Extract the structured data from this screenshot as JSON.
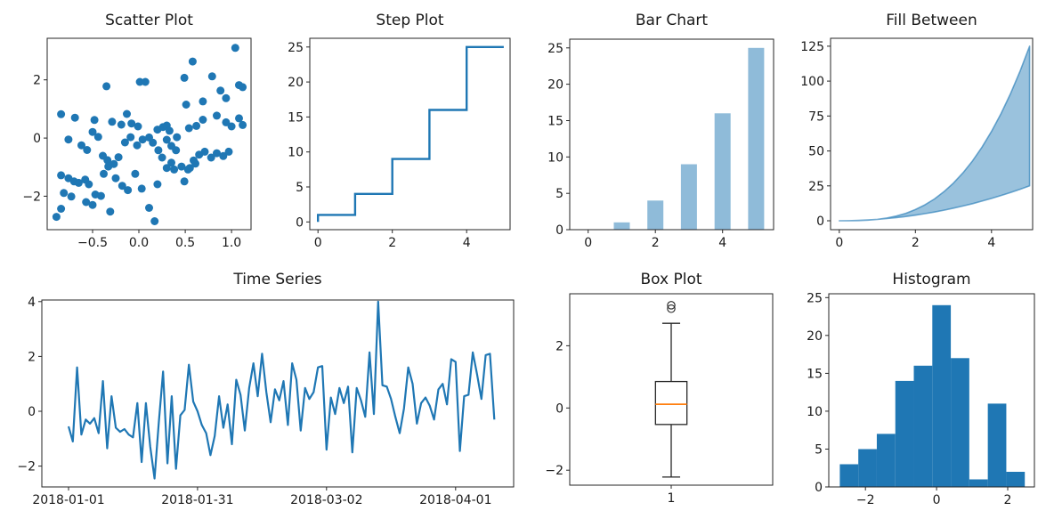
{
  "colors": {
    "primary": "#1f77b4",
    "translucent": "rgba(31,119,180,0.5)",
    "area_fill": "rgba(31,119,180,0.45)",
    "area_edge": "rgba(31,119,180,0.62)",
    "median": "#ff7f0e",
    "text": "#191919",
    "spine": "#262626"
  },
  "chart_data": [
    {
      "id": "scatter",
      "type": "scatter",
      "title": "Scatter Plot",
      "xlim": [
        -0.99,
        1.21
      ],
      "ylim": [
        -3.15,
        3.43
      ],
      "xticks": [
        {
          "v": -0.5,
          "l": "−0.5"
        },
        {
          "v": 0.0,
          "l": "0.0"
        },
        {
          "v": 0.5,
          "l": "0.5"
        },
        {
          "v": 1.0,
          "l": "1.0"
        }
      ],
      "yticks": [
        {
          "v": -2,
          "l": "−2"
        },
        {
          "v": 0,
          "l": "0"
        },
        {
          "v": 2,
          "l": "2"
        }
      ],
      "points": [
        [
          1.04,
          3.1
        ],
        [
          0.58,
          2.63
        ],
        [
          0.01,
          1.93
        ],
        [
          0.07,
          1.93
        ],
        [
          -0.35,
          1.78
        ],
        [
          0.49,
          2.07
        ],
        [
          0.79,
          2.12
        ],
        [
          1.08,
          1.82
        ],
        [
          1.12,
          1.75
        ],
        [
          0.88,
          1.63
        ],
        [
          0.94,
          1.37
        ],
        [
          0.69,
          1.26
        ],
        [
          0.51,
          1.15
        ],
        [
          -0.84,
          0.82
        ],
        [
          -0.69,
          0.7
        ],
        [
          -0.48,
          0.62
        ],
        [
          -0.29,
          0.56
        ],
        [
          -0.13,
          0.83
        ],
        [
          -0.19,
          0.46
        ],
        [
          -0.08,
          0.5
        ],
        [
          -0.01,
          0.4
        ],
        [
          0.2,
          0.29
        ],
        [
          0.26,
          0.38
        ],
        [
          0.3,
          0.43
        ],
        [
          0.33,
          0.25
        ],
        [
          0.41,
          0.03
        ],
        [
          0.54,
          0.34
        ],
        [
          0.62,
          0.42
        ],
        [
          0.69,
          0.63
        ],
        [
          0.84,
          0.77
        ],
        [
          0.94,
          0.54
        ],
        [
          1.0,
          0.4
        ],
        [
          1.08,
          0.68
        ],
        [
          1.12,
          0.45
        ],
        [
          -0.76,
          -0.05
        ],
        [
          -0.62,
          -0.25
        ],
        [
          -0.56,
          -0.41
        ],
        [
          -0.5,
          0.21
        ],
        [
          -0.44,
          0.04
        ],
        [
          -0.39,
          -0.61
        ],
        [
          -0.34,
          -0.76
        ],
        [
          -0.27,
          -0.89
        ],
        [
          -0.22,
          -0.66
        ],
        [
          -0.15,
          -0.15
        ],
        [
          -0.09,
          0.03
        ],
        [
          -0.02,
          -0.25
        ],
        [
          0.04,
          -0.05
        ],
        [
          0.11,
          0.02
        ],
        [
          0.15,
          -0.16
        ],
        [
          0.21,
          -0.42
        ],
        [
          0.25,
          -0.67
        ],
        [
          0.3,
          -0.06
        ],
        [
          0.35,
          -0.27
        ],
        [
          0.4,
          -0.42
        ],
        [
          0.46,
          -0.98
        ],
        [
          0.53,
          -1.08
        ],
        [
          0.59,
          -0.77
        ],
        [
          0.65,
          -0.57
        ],
        [
          0.71,
          -0.47
        ],
        [
          0.78,
          -0.67
        ],
        [
          0.84,
          -0.52
        ],
        [
          0.91,
          -0.62
        ],
        [
          0.97,
          -0.47
        ],
        [
          -0.84,
          -1.28
        ],
        [
          -0.76,
          -1.38
        ],
        [
          -0.7,
          -1.49
        ],
        [
          -0.65,
          -1.54
        ],
        [
          -0.58,
          -1.43
        ],
        [
          -0.54,
          -1.59
        ],
        [
          -0.47,
          -1.94
        ],
        [
          -0.41,
          -1.99
        ],
        [
          -0.81,
          -1.89
        ],
        [
          -0.73,
          -2.01
        ],
        [
          -0.38,
          -1.23
        ],
        [
          -0.33,
          -0.98
        ],
        [
          -0.25,
          -1.38
        ],
        [
          -0.18,
          -1.64
        ],
        [
          -0.12,
          -1.79
        ],
        [
          -0.04,
          -1.23
        ],
        [
          0.03,
          -1.74
        ],
        [
          0.11,
          -2.4
        ],
        [
          0.17,
          -2.86
        ],
        [
          0.2,
          -1.59
        ],
        [
          0.3,
          -1.03
        ],
        [
          0.38,
          -1.08
        ],
        [
          0.49,
          -1.49
        ],
        [
          0.55,
          -1.03
        ],
        [
          -0.84,
          -2.43
        ],
        [
          -0.89,
          -2.71
        ],
        [
          -0.57,
          -2.2
        ],
        [
          -0.5,
          -2.3
        ],
        [
          -0.31,
          -2.53
        ],
        [
          0.35,
          -0.85
        ],
        [
          0.61,
          -0.88
        ]
      ]
    },
    {
      "id": "step",
      "type": "step",
      "title": "Step Plot",
      "xlim": [
        -0.22,
        5.17
      ],
      "ylim": [
        -1.11,
        26.25
      ],
      "xticks": [
        {
          "v": 0,
          "l": "0"
        },
        {
          "v": 2,
          "l": "2"
        },
        {
          "v": 4,
          "l": "4"
        }
      ],
      "yticks": [
        {
          "v": 0,
          "l": "0"
        },
        {
          "v": 5,
          "l": "5"
        },
        {
          "v": 10,
          "l": "10"
        },
        {
          "v": 15,
          "l": "15"
        },
        {
          "v": 20,
          "l": "20"
        },
        {
          "v": 25,
          "l": "25"
        }
      ],
      "x": [
        0,
        1,
        2,
        3,
        4,
        5
      ],
      "y": [
        0,
        1,
        4,
        9,
        16,
        25
      ],
      "step_where": "pre"
    },
    {
      "id": "bar",
      "type": "bar",
      "title": "Bar Chart",
      "xlim": [
        -0.55,
        5.52
      ],
      "ylim": [
        0,
        26.2
      ],
      "xticks": [
        {
          "v": 0,
          "l": "0"
        },
        {
          "v": 2,
          "l": "2"
        },
        {
          "v": 4,
          "l": "4"
        }
      ],
      "yticks": [
        {
          "v": 0,
          "l": "0"
        },
        {
          "v": 5,
          "l": "5"
        },
        {
          "v": 10,
          "l": "10"
        },
        {
          "v": 15,
          "l": "15"
        },
        {
          "v": 20,
          "l": "20"
        },
        {
          "v": 25,
          "l": "25"
        }
      ],
      "x": [
        0,
        1,
        2,
        3,
        4,
        5
      ],
      "heights": [
        0,
        1,
        4,
        9,
        16,
        25
      ],
      "bar_width": 0.477
    },
    {
      "id": "fill",
      "type": "area",
      "title": "Fill Between",
      "xlim": [
        -0.23,
        5.08
      ],
      "ylim": [
        -6.4,
        130.7
      ],
      "xticks": [
        {
          "v": 0,
          "l": "0"
        },
        {
          "v": 2,
          "l": "2"
        },
        {
          "v": 4,
          "l": "4"
        }
      ],
      "yticks": [
        {
          "v": 0,
          "l": "0"
        },
        {
          "v": 25,
          "l": "25"
        },
        {
          "v": 50,
          "l": "50"
        },
        {
          "v": 75,
          "l": "75"
        },
        {
          "v": 100,
          "l": "100"
        },
        {
          "v": 125,
          "l": "125"
        }
      ],
      "x": [
        0,
        0.25,
        0.5,
        0.75,
        1,
        1.25,
        1.5,
        1.75,
        2,
        2.25,
        2.5,
        2.75,
        3,
        3.25,
        3.5,
        3.75,
        4,
        4.25,
        4.5,
        4.75,
        5
      ],
      "y_lower": [
        0,
        0.063,
        0.25,
        0.563,
        1,
        1.563,
        2.25,
        3.063,
        4,
        5.063,
        6.25,
        7.563,
        9,
        10.563,
        12.25,
        14.063,
        16,
        18.063,
        20.25,
        22.563,
        25
      ],
      "y_upper": [
        0,
        0.016,
        0.125,
        0.422,
        1,
        1.953,
        3.375,
        5.359,
        8,
        11.391,
        15.625,
        20.797,
        27,
        34.328,
        42.875,
        52.734,
        64,
        76.766,
        91.125,
        107.172,
        125
      ]
    },
    {
      "id": "timeseries",
      "type": "line",
      "title": "Time Series",
      "xlim": [
        -6.2,
        103.5
      ],
      "ylim": [
        -2.76,
        4.06
      ],
      "xticks": [
        {
          "v": 0,
          "l": "2018-01-01"
        },
        {
          "v": 30,
          "l": "2018-01-31"
        },
        {
          "v": 60,
          "l": "2018-03-02"
        },
        {
          "v": 90,
          "l": "2018-04-01"
        }
      ],
      "yticks": [
        {
          "v": -2,
          "l": "−2"
        },
        {
          "v": 0,
          "l": "0"
        },
        {
          "v": 2,
          "l": "2"
        },
        {
          "v": 4,
          "l": "4"
        }
      ],
      "values": [
        -0.55,
        -1.1,
        1.6,
        -0.85,
        -0.3,
        -0.45,
        -0.25,
        -0.8,
        1.1,
        -1.35,
        0.55,
        -0.6,
        -0.75,
        -0.65,
        -0.85,
        -0.95,
        0.3,
        -1.85,
        0.3,
        -1.3,
        -2.45,
        -0.4,
        1.45,
        -1.9,
        0.55,
        -2.1,
        -0.15,
        0.05,
        1.7,
        0.35,
        0.0,
        -0.5,
        -0.8,
        -1.6,
        -0.9,
        0.55,
        -0.6,
        0.25,
        -1.2,
        1.15,
        0.6,
        -0.7,
        0.85,
        1.75,
        0.55,
        2.1,
        0.7,
        -0.4,
        0.8,
        0.4,
        1.1,
        -0.5,
        1.75,
        1.15,
        -0.7,
        0.85,
        0.45,
        0.7,
        1.6,
        1.65,
        -1.4,
        0.5,
        -0.1,
        0.85,
        0.3,
        0.9,
        -1.5,
        0.85,
        0.4,
        -0.2,
        2.15,
        -0.1,
        4.0,
        0.95,
        0.9,
        0.45,
        -0.2,
        -0.8,
        0.1,
        1.6,
        1.0,
        -0.45,
        0.3,
        0.5,
        0.2,
        -0.3,
        0.8,
        1.0,
        0.25,
        1.9,
        1.8,
        -1.45,
        0.55,
        0.6,
        2.15,
        1.35,
        0.45,
        2.05,
        2.1,
        -0.3
      ]
    },
    {
      "id": "box",
      "type": "box",
      "title": "Box Plot",
      "xlim": [
        0.5,
        1.5
      ],
      "ylim": [
        -2.48,
        3.67
      ],
      "xticks": [
        {
          "v": 1,
          "l": "1"
        }
      ],
      "yticks": [
        {
          "v": -2,
          "l": "−2"
        },
        {
          "v": 0,
          "l": "0"
        },
        {
          "v": 2,
          "l": "2"
        }
      ],
      "stats": {
        "whisker_low": -2.22,
        "q1": -0.53,
        "median": 0.12,
        "q3": 0.85,
        "whisker_high": 2.72,
        "outliers": [
          3.19,
          3.3
        ]
      },
      "box_width": 0.155,
      "cap_width": 0.088
    },
    {
      "id": "hist",
      "type": "histogram",
      "title": "Histogram",
      "xlim": [
        -3.03,
        2.75
      ],
      "ylim": [
        0,
        25.5
      ],
      "xticks": [
        {
          "v": -2,
          "l": "−2"
        },
        {
          "v": 0,
          "l": "0"
        },
        {
          "v": 2,
          "l": "2"
        }
      ],
      "yticks": [
        {
          "v": 0,
          "l": "0"
        },
        {
          "v": 5,
          "l": "5"
        },
        {
          "v": 10,
          "l": "10"
        },
        {
          "v": 15,
          "l": "15"
        },
        {
          "v": 20,
          "l": "20"
        },
        {
          "v": 25,
          "l": "25"
        }
      ],
      "edges": [
        -2.72,
        -2.2,
        -1.68,
        -1.16,
        -0.64,
        -0.12,
        0.4,
        0.92,
        1.44,
        1.96,
        2.48
      ],
      "counts": [
        3,
        5,
        7,
        14,
        16,
        24,
        17,
        1,
        11,
        2
      ]
    }
  ]
}
